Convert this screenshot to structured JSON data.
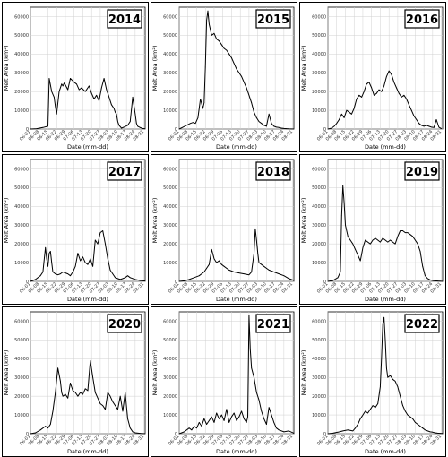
{
  "chart_data": [
    {
      "type": "line",
      "year_label": "2014",
      "xlabel": "Date (mm-dd)",
      "ylabel": "Melt Area (km²)",
      "ylim": [
        0,
        65000
      ],
      "yticks": [
        "0",
        "10000",
        "20000",
        "30000",
        "40000",
        "50000",
        "60000"
      ],
      "xticks": [
        "06-01",
        "06-08",
        "06-15",
        "06-22",
        "06-29",
        "07-06",
        "07-13",
        "07-20",
        "07-27",
        "08-03",
        "08-10",
        "08-17",
        "08-24",
        "08-31"
      ],
      "x": [
        0,
        5,
        10,
        14,
        15,
        17,
        19,
        20,
        21,
        23,
        25,
        26,
        27,
        28,
        30,
        32,
        35,
        37,
        39,
        41,
        44,
        47,
        49,
        51,
        53,
        55,
        57,
        59,
        61,
        63,
        65,
        67,
        68,
        69,
        70,
        71,
        73,
        75,
        78,
        80,
        82,
        84,
        85,
        86,
        88,
        90,
        92
      ],
      "values": [
        0,
        200,
        800,
        1500,
        27000,
        20000,
        17000,
        12000,
        8000,
        20000,
        24000,
        23000,
        24500,
        23500,
        21000,
        27000,
        25000,
        24000,
        21000,
        22000,
        20000,
        23000,
        19000,
        16000,
        18000,
        15000,
        22000,
        27000,
        21000,
        17000,
        13000,
        11000,
        9000,
        8000,
        4000,
        2000,
        500,
        1000,
        2000,
        4000,
        17000,
        8000,
        3000,
        1500,
        800,
        300,
        100
      ]
    },
    {
      "type": "line",
      "year_label": "2015",
      "xlabel": "Date (mm-dd)",
      "ylabel": "Melt Area (km²)",
      "ylim": [
        0,
        65000
      ],
      "yticks": [
        "0",
        "10000",
        "20000",
        "30000",
        "40000",
        "50000",
        "60000"
      ],
      "xticks": [
        "06-01",
        "06-08",
        "06-15",
        "06-22",
        "06-29",
        "07-06",
        "07-13",
        "07-20",
        "07-27",
        "08-03",
        "08-10",
        "08-17",
        "08-24",
        "08-31"
      ],
      "x": [
        0,
        3,
        6,
        9,
        11,
        13,
        15,
        17,
        19,
        20,
        21,
        22,
        23,
        24,
        25,
        26,
        28,
        30,
        32,
        34,
        36,
        38,
        40,
        42,
        44,
        46,
        48,
        50,
        52,
        54,
        56,
        58,
        60,
        62,
        64,
        66,
        68,
        70,
        72,
        74,
        76,
        78,
        80,
        82,
        84,
        86,
        88,
        90,
        92
      ],
      "values": [
        0,
        1000,
        2000,
        3000,
        3500,
        3000,
        6000,
        16000,
        11000,
        14000,
        33000,
        58000,
        63000,
        56000,
        53000,
        50000,
        51000,
        48000,
        47000,
        45000,
        43000,
        42000,
        40000,
        38000,
        35000,
        32000,
        30000,
        28000,
        25000,
        22000,
        18000,
        14000,
        9000,
        6000,
        4000,
        3000,
        2000,
        1500,
        8000,
        3000,
        1500,
        1000,
        800,
        500,
        300,
        200,
        100,
        50,
        0
      ]
    },
    {
      "type": "line",
      "year_label": "2016",
      "xlabel": "Date (mm-dd)",
      "ylabel": "Melt Area (km²)",
      "ylim": [
        0,
        65000
      ],
      "yticks": [
        "0",
        "10000",
        "20000",
        "30000",
        "40000",
        "50000",
        "60000"
      ],
      "xticks": [
        "06-01",
        "06-08",
        "06-15",
        "06-22",
        "06-29",
        "07-06",
        "07-13",
        "07-20",
        "07-27",
        "08-03",
        "08-10",
        "08-17",
        "08-24",
        "08-31"
      ],
      "x": [
        0,
        3,
        5,
        7,
        9,
        11,
        13,
        15,
        17,
        19,
        21,
        23,
        25,
        27,
        29,
        31,
        33,
        35,
        37,
        39,
        41,
        43,
        45,
        47,
        49,
        51,
        53,
        55,
        57,
        59,
        61,
        63,
        65,
        67,
        69,
        71,
        73,
        75,
        77,
        79,
        81,
        83,
        85,
        87,
        89,
        91
      ],
      "values": [
        0,
        500,
        1500,
        3000,
        5000,
        8000,
        6000,
        10000,
        9000,
        8000,
        11000,
        16000,
        18000,
        17000,
        20000,
        24000,
        25000,
        22000,
        18000,
        19000,
        21000,
        20000,
        23000,
        28000,
        31000,
        29000,
        25000,
        22000,
        19000,
        17000,
        18000,
        16000,
        13000,
        10000,
        7000,
        5000,
        3000,
        2000,
        1500,
        2000,
        1500,
        1000,
        800,
        5000,
        1000,
        200
      ]
    },
    {
      "type": "line",
      "year_label": "2017",
      "xlabel": "Date (mm-dd)",
      "ylabel": "Melt Area (km²)",
      "ylim": [
        0,
        65000
      ],
      "yticks": [
        "0",
        "10000",
        "20000",
        "30000",
        "40000",
        "50000",
        "60000"
      ],
      "xticks": [
        "06-01",
        "06-08",
        "06-15",
        "06-22",
        "06-29",
        "07-06",
        "07-13",
        "07-20",
        "07-27",
        "08-03",
        "08-10",
        "08-17",
        "08-24",
        "08-31"
      ],
      "x": [
        0,
        4,
        8,
        10,
        12,
        13,
        14,
        15,
        16,
        17,
        18,
        20,
        22,
        24,
        26,
        28,
        30,
        32,
        34,
        36,
        38,
        40,
        42,
        44,
        46,
        48,
        50,
        52,
        54,
        56,
        58,
        60,
        62,
        64,
        66,
        68,
        70,
        72,
        74,
        76,
        78,
        80,
        84,
        88,
        92
      ],
      "values": [
        0,
        1000,
        3000,
        5000,
        18000,
        12000,
        8000,
        15000,
        16000,
        10000,
        5000,
        4000,
        3500,
        4000,
        5000,
        4500,
        4000,
        3000,
        5000,
        8000,
        15000,
        11000,
        13000,
        10000,
        9000,
        12000,
        8000,
        22000,
        20000,
        26000,
        27000,
        20000,
        12000,
        6000,
        4000,
        2000,
        1500,
        1000,
        1500,
        2000,
        3000,
        2000,
        1000,
        500,
        200
      ]
    },
    {
      "type": "line",
      "year_label": "2018",
      "xlabel": "Date (mm-dd)",
      "ylabel": "Melt Area (km²)",
      "ylim": [
        0,
        65000
      ],
      "yticks": [
        "0",
        "10000",
        "20000",
        "30000",
        "40000",
        "50000",
        "60000"
      ],
      "xticks": [
        "06-01",
        "06-08",
        "06-15",
        "06-22",
        "06-29",
        "07-06",
        "07-13",
        "07-20",
        "07-27",
        "08-03",
        "08-10",
        "08-17",
        "08-24",
        "08-31"
      ],
      "x": [
        0,
        4,
        8,
        12,
        16,
        20,
        22,
        24,
        26,
        28,
        30,
        32,
        34,
        36,
        38,
        40,
        44,
        48,
        52,
        56,
        58,
        60,
        61,
        62,
        63,
        64,
        66,
        68,
        70,
        72,
        76,
        80,
        84,
        88,
        92
      ],
      "values": [
        0,
        300,
        1000,
        2000,
        3000,
        5000,
        7000,
        9000,
        17000,
        12000,
        10000,
        11000,
        9000,
        8000,
        7000,
        6000,
        5000,
        4500,
        4000,
        3500,
        5000,
        15000,
        28000,
        22000,
        15000,
        10000,
        9000,
        8000,
        7000,
        6000,
        5000,
        4000,
        3000,
        1500,
        500
      ]
    },
    {
      "type": "line",
      "year_label": "2019",
      "xlabel": "Date (mm-dd)",
      "ylabel": "Melt Area (km²)",
      "ylim": [
        0,
        65000
      ],
      "yticks": [
        "0",
        "10000",
        "20000",
        "30000",
        "40000",
        "50000",
        "60000"
      ],
      "xticks": [
        "06-01",
        "06-08",
        "06-15",
        "06-22",
        "06-29",
        "07-06",
        "07-13",
        "07-20",
        "07-27",
        "08-03",
        "08-10",
        "08-17",
        "08-24",
        "08-31"
      ],
      "x": [
        0,
        4,
        8,
        10,
        11,
        12,
        13,
        14,
        16,
        18,
        20,
        22,
        24,
        26,
        28,
        30,
        32,
        34,
        36,
        38,
        40,
        42,
        44,
        46,
        48,
        50,
        52,
        54,
        56,
        58,
        60,
        62,
        64,
        66,
        68,
        70,
        72,
        74,
        76,
        78,
        80,
        82,
        84,
        86,
        88,
        90,
        92
      ],
      "values": [
        0,
        500,
        2000,
        5000,
        35000,
        51000,
        42000,
        30000,
        24000,
        22000,
        20000,
        17000,
        14000,
        11000,
        18000,
        22000,
        21000,
        20000,
        22000,
        23000,
        22000,
        21000,
        23000,
        22000,
        21000,
        22000,
        21000,
        20000,
        24000,
        27000,
        27000,
        26000,
        26000,
        25000,
        24000,
        22000,
        20000,
        16000,
        8000,
        3000,
        1500,
        800,
        500,
        300,
        200,
        100,
        0
      ]
    },
    {
      "type": "line",
      "year_label": "2020",
      "xlabel": "Date (mm-dd)",
      "ylabel": "Melt Area (km²)",
      "ylim": [
        0,
        65000
      ],
      "yticks": [
        "0",
        "10000",
        "20000",
        "30000",
        "40000",
        "50000",
        "60000"
      ],
      "xticks": [
        "06-01",
        "06-08",
        "06-15",
        "06-22",
        "06-29",
        "07-06",
        "07-13",
        "07-20",
        "07-27",
        "08-03",
        "08-10",
        "08-17",
        "08-24",
        "08-31"
      ],
      "x": [
        0,
        4,
        8,
        12,
        14,
        16,
        18,
        20,
        22,
        24,
        25,
        26,
        28,
        30,
        32,
        34,
        36,
        38,
        40,
        42,
        44,
        46,
        48,
        50,
        52,
        54,
        56,
        58,
        60,
        62,
        64,
        66,
        68,
        70,
        72,
        74,
        76,
        78,
        80,
        82,
        84,
        88,
        92
      ],
      "values": [
        0,
        500,
        2000,
        4000,
        3000,
        5000,
        12000,
        22000,
        35000,
        28000,
        22000,
        20000,
        21000,
        19000,
        27000,
        23000,
        22000,
        20000,
        22000,
        21000,
        24000,
        23000,
        39000,
        30000,
        22000,
        19000,
        16000,
        15000,
        13000,
        22000,
        20000,
        17000,
        15000,
        13000,
        20000,
        12000,
        22000,
        8000,
        3000,
        1000,
        500,
        200,
        0
      ]
    },
    {
      "type": "line",
      "year_label": "2021",
      "xlabel": "Date (mm-dd)",
      "ylabel": "Melt Area (km²)",
      "ylim": [
        0,
        65000
      ],
      "yticks": [
        "0",
        "10000",
        "20000",
        "30000",
        "40000",
        "50000",
        "60000"
      ],
      "xticks": [
        "06-01",
        "06-08",
        "06-15",
        "06-22",
        "06-29",
        "07-06",
        "07-13",
        "07-20",
        "07-27",
        "08-03",
        "08-10",
        "08-17",
        "08-24",
        "08-31"
      ],
      "x": [
        0,
        4,
        8,
        10,
        12,
        14,
        16,
        18,
        20,
        22,
        24,
        26,
        28,
        30,
        32,
        34,
        36,
        38,
        40,
        42,
        44,
        46,
        48,
        50,
        52,
        54,
        55,
        56,
        57,
        58,
        60,
        62,
        64,
        66,
        68,
        70,
        72,
        74,
        76,
        78,
        80,
        84,
        88,
        92
      ],
      "values": [
        0,
        1000,
        3000,
        2000,
        4000,
        3000,
        6000,
        4000,
        8000,
        5000,
        7000,
        9000,
        6000,
        11000,
        8000,
        10000,
        7000,
        13000,
        6000,
        9000,
        11000,
        7000,
        9000,
        12000,
        8000,
        6000,
        9000,
        63000,
        45000,
        35000,
        30000,
        22000,
        18000,
        12000,
        8000,
        5000,
        14000,
        10000,
        6000,
        3000,
        2000,
        1000,
        1500,
        300
      ]
    },
    {
      "type": "line",
      "year_label": "2022",
      "xlabel": "Date (mm-dd)",
      "ylabel": "Melt Area (km²)",
      "ylim": [
        0,
        65000
      ],
      "yticks": [
        "0",
        "10000",
        "20000",
        "30000",
        "40000",
        "50000",
        "60000"
      ],
      "xticks": [
        "06-01",
        "06-08",
        "06-15",
        "06-22",
        "06-29",
        "07-06",
        "07-13",
        "07-20",
        "07-27",
        "08-03",
        "08-10",
        "08-17",
        "08-24",
        "08-31"
      ],
      "x": [
        0,
        4,
        8,
        12,
        16,
        20,
        22,
        24,
        26,
        28,
        30,
        32,
        34,
        36,
        38,
        40,
        42,
        43,
        44,
        45,
        46,
        47,
        48,
        50,
        52,
        54,
        56,
        58,
        60,
        62,
        64,
        66,
        68,
        70,
        72,
        74,
        76,
        78,
        80,
        82,
        84,
        86,
        88,
        90,
        92
      ],
      "values": [
        0,
        300,
        800,
        1500,
        2000,
        1500,
        3000,
        5000,
        8000,
        10000,
        12000,
        11000,
        13000,
        15000,
        14000,
        16000,
        25000,
        40000,
        58000,
        62000,
        50000,
        35000,
        30000,
        31000,
        29000,
        28000,
        25000,
        20000,
        15000,
        12000,
        10000,
        9000,
        8000,
        6000,
        5000,
        4000,
        3000,
        2000,
        1500,
        1000,
        800,
        500,
        300,
        200,
        100
      ]
    }
  ]
}
